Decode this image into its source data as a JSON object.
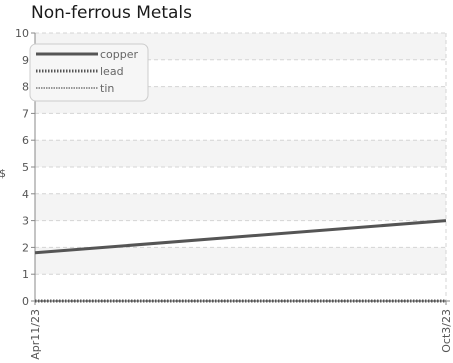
{
  "chart_data": {
    "type": "line",
    "title": "Non-ferrous Metals",
    "xlabel": "",
    "ylabel": "$",
    "x": [
      "Apr11/23",
      "Oct3/23"
    ],
    "ylim": [
      0,
      10
    ],
    "yticks": [
      0,
      1,
      2,
      3,
      4,
      5,
      6,
      7,
      8,
      9,
      10
    ],
    "grid": true,
    "legend_position": "top-left",
    "series": [
      {
        "name": "copper",
        "values": [
          1.8,
          3.0
        ],
        "style": "solid",
        "color": "#555555"
      },
      {
        "name": "lead",
        "values": [
          0.0,
          0.0
        ],
        "style": "dotted",
        "color": "#555555"
      },
      {
        "name": "tin",
        "values": [
          0.0,
          0.0
        ],
        "style": "dashed",
        "color": "#777777"
      }
    ]
  }
}
